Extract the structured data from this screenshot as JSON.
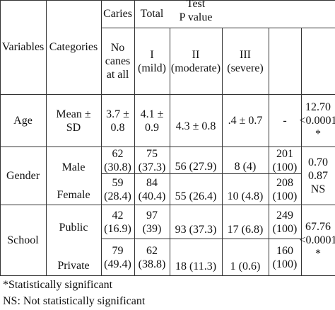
{
  "table": {
    "header": {
      "variables": "Variables",
      "categories": "Categories",
      "caries": "Caries",
      "total": "Total",
      "test_line1": "Test",
      "test_line2": "P value",
      "no_caries_lines": [
        "No",
        "canes",
        "at all"
      ],
      "mild_lines": [
        "I",
        "(mild)"
      ],
      "moderate_lines": [
        "II",
        "(moderate)"
      ],
      "severe_lines": [
        "III",
        "(severe)"
      ]
    },
    "age": {
      "variable": "Age",
      "category_lines": [
        "Mean ±",
        "SD"
      ],
      "no_caries_lines": [
        "3.7 ±",
        "0.8"
      ],
      "mild_lines": [
        "4.1 ±",
        "0.9"
      ],
      "moderate": "4.3 ± 0.8",
      "severe": ".4 ± 0.7",
      "total": "-",
      "test_lines": [
        "12.70",
        "<0.0001",
        "*"
      ]
    },
    "gender": {
      "variable": "Gender",
      "rows": [
        {
          "category": "Male",
          "no_caries_lines": [
            "62",
            "(30.8)"
          ],
          "mild_lines": [
            "75",
            "(37.3)"
          ],
          "moderate": "56 (27.9)",
          "severe": "8 (4)",
          "total_lines": [
            "201",
            "(100)"
          ]
        },
        {
          "category": "Female",
          "no_caries_lines": [
            "59",
            "(28.4)"
          ],
          "mild_lines": [
            "84",
            "(40.4)"
          ],
          "moderate": "55 (26.4)",
          "severe": "10 (4.8)",
          "total_lines": [
            "208",
            "(100)"
          ]
        }
      ],
      "test_lines": [
        "0.70",
        "0.87",
        "NS"
      ]
    },
    "school": {
      "variable": "School",
      "rows": [
        {
          "category": "Public",
          "no_caries_lines": [
            "42",
            "(16.9)"
          ],
          "mild_lines": [
            "97",
            "(39)"
          ],
          "moderate": "93 (37.3)",
          "severe": "17 (6.8)",
          "total_lines": [
            "249",
            "(100)"
          ]
        },
        {
          "category": "Private",
          "no_caries_lines": [
            "79",
            "(49.4)"
          ],
          "mild_lines": [
            "62",
            "(38.8)"
          ],
          "moderate": "18 (11.3)",
          "severe": "1 (0.6)",
          "total_lines": [
            "160",
            "(100)"
          ]
        }
      ],
      "test_lines": [
        "67.76",
        "<0.0001",
        "*"
      ]
    }
  },
  "footnotes": {
    "significant": "*Statistically significant",
    "not_significant": "NS: Not statistically significant"
  }
}
